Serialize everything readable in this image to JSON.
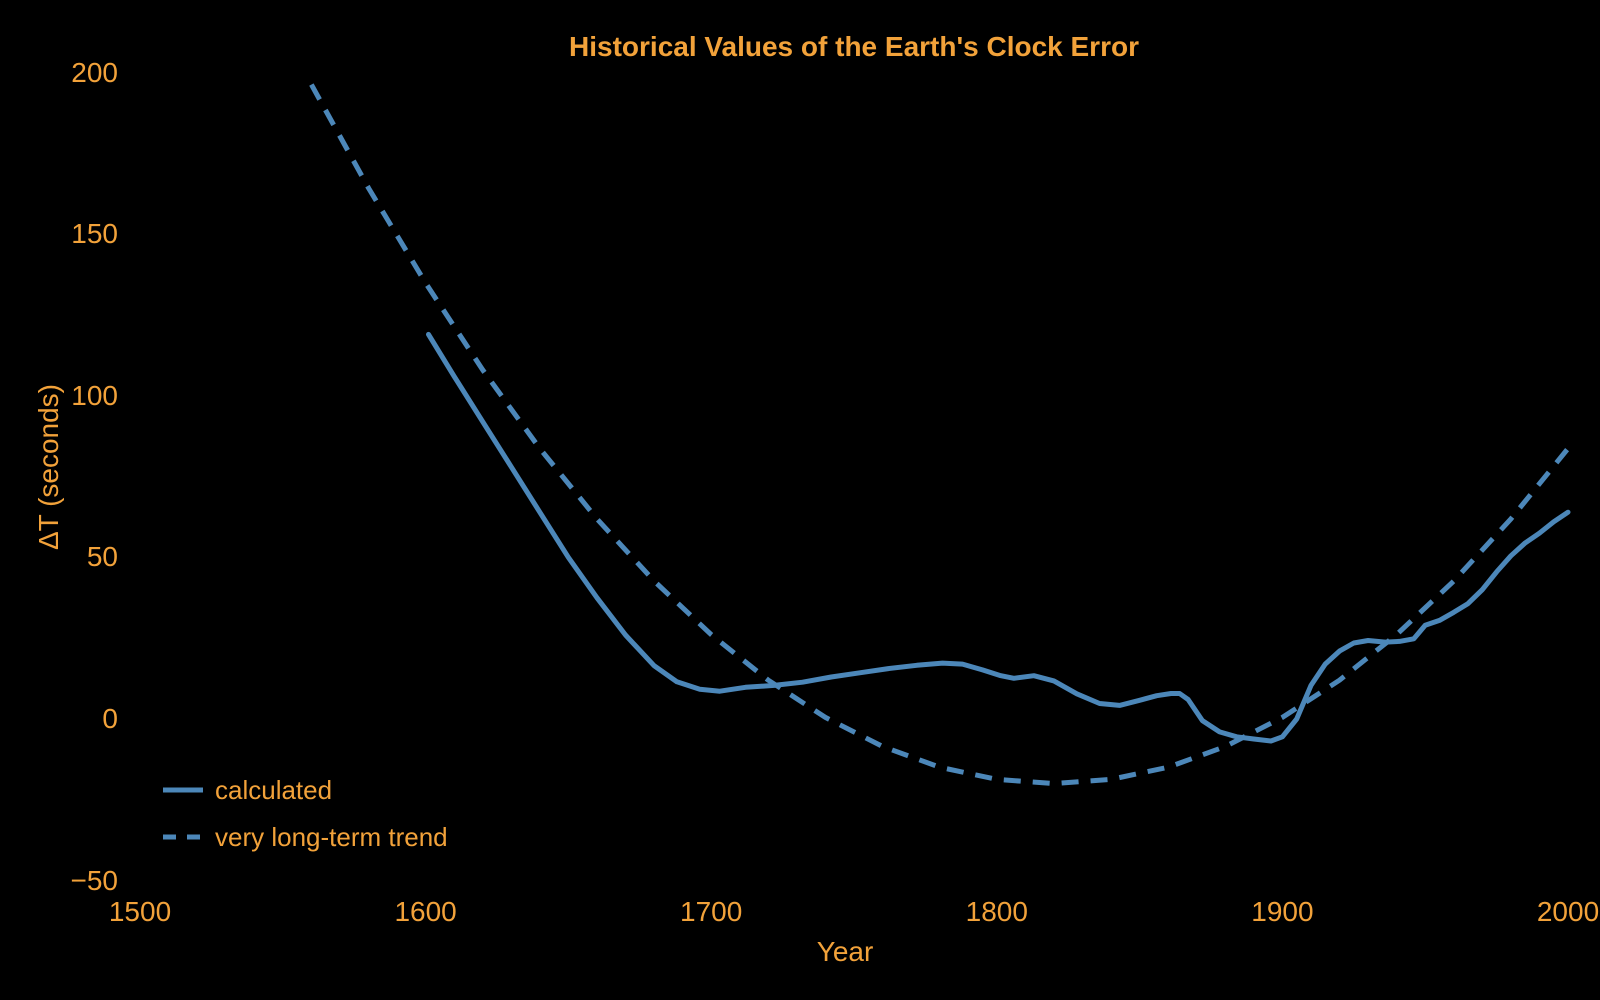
{
  "title": "Historical Values of the Earth's Clock Error",
  "colors": {
    "background": "#000000",
    "text": "#F2A23A",
    "line": "#4C87B9"
  },
  "legend": {
    "items": [
      {
        "label": "calculated",
        "style": "solid"
      },
      {
        "label": "very long-term trend",
        "style": "dashed"
      }
    ]
  },
  "chart_data": {
    "type": "line",
    "title": "Historical Values of the Earth's Clock Error",
    "xlabel": "Year",
    "ylabel": "ΔT (seconds)",
    "xlim": [
      1500,
      2000
    ],
    "ylim": [
      -50,
      200
    ],
    "grid": false,
    "legend_position": "lower left",
    "x_ticks": [
      {
        "value": 1500,
        "label": "1500"
      },
      {
        "value": 1600,
        "label": "1600"
      },
      {
        "value": 1700,
        "label": "1700"
      },
      {
        "value": 1800,
        "label": "1800"
      },
      {
        "value": 1900,
        "label": "1900"
      },
      {
        "value": 2000,
        "label": "2000"
      }
    ],
    "y_ticks": [
      {
        "value": -50,
        "label": "−50"
      },
      {
        "value": 0,
        "label": "0"
      },
      {
        "value": 50,
        "label": "50"
      },
      {
        "value": 100,
        "label": "100"
      },
      {
        "value": 150,
        "label": "150"
      },
      {
        "value": 200,
        "label": "200"
      }
    ],
    "series": [
      {
        "name": "calculated",
        "style": "solid",
        "points": [
          [
            1601,
            119
          ],
          [
            1610,
            106
          ],
          [
            1620,
            92
          ],
          [
            1630,
            78
          ],
          [
            1640,
            64
          ],
          [
            1650,
            50
          ],
          [
            1660,
            37.5
          ],
          [
            1670,
            26
          ],
          [
            1680,
            16.5
          ],
          [
            1688,
            11.5
          ],
          [
            1696,
            9.2
          ],
          [
            1703,
            8.6
          ],
          [
            1712,
            9.8
          ],
          [
            1722,
            10.4
          ],
          [
            1732,
            11.4
          ],
          [
            1742,
            13
          ],
          [
            1752,
            14.3
          ],
          [
            1762,
            15.6
          ],
          [
            1772,
            16.6
          ],
          [
            1781,
            17.3
          ],
          [
            1788,
            17
          ],
          [
            1795,
            15.2
          ],
          [
            1801,
            13.5
          ],
          [
            1806,
            12.6
          ],
          [
            1813,
            13.4
          ],
          [
            1820,
            11.8
          ],
          [
            1828,
            7.8
          ],
          [
            1836,
            4.8
          ],
          [
            1843,
            4.2
          ],
          [
            1850,
            5.8
          ],
          [
            1856,
            7.2
          ],
          [
            1861,
            7.9
          ],
          [
            1864,
            7.9
          ],
          [
            1867,
            6
          ],
          [
            1872,
            -0.5
          ],
          [
            1878,
            -4
          ],
          [
            1884,
            -5.5
          ],
          [
            1890,
            -6.2
          ],
          [
            1896,
            -6.8
          ],
          [
            1900,
            -5.5
          ],
          [
            1905,
            0
          ],
          [
            1910,
            10.4
          ],
          [
            1915,
            17
          ],
          [
            1920,
            21
          ],
          [
            1925,
            23.5
          ],
          [
            1930,
            24.3
          ],
          [
            1936,
            23.8
          ],
          [
            1941,
            24
          ],
          [
            1946,
            24.8
          ],
          [
            1950,
            29
          ],
          [
            1955,
            30.5
          ],
          [
            1960,
            33
          ],
          [
            1965,
            35.7
          ],
          [
            1970,
            40
          ],
          [
            1975,
            45.5
          ],
          [
            1980,
            50.5
          ],
          [
            1985,
            54.5
          ],
          [
            1990,
            57.5
          ],
          [
            1995,
            61
          ],
          [
            2000,
            64
          ]
        ]
      },
      {
        "name": "very long-term trend",
        "style": "dashed",
        "points": [
          [
            1560,
            196.3
          ],
          [
            1580,
            164.3
          ],
          [
            1600,
            134.9
          ],
          [
            1620,
            108.0
          ],
          [
            1640,
            83.7
          ],
          [
            1660,
            61.9
          ],
          [
            1680,
            42.7
          ],
          [
            1700,
            26.1
          ],
          [
            1720,
            12.0
          ],
          [
            1740,
            0.5
          ],
          [
            1760,
            -8.5
          ],
          [
            1780,
            -14.9
          ],
          [
            1800,
            -18.7
          ],
          [
            1820,
            -20.0
          ],
          [
            1840,
            -18.7
          ],
          [
            1860,
            -14.9
          ],
          [
            1880,
            -8.5
          ],
          [
            1900,
            0.5
          ],
          [
            1920,
            12.0
          ],
          [
            1940,
            26.1
          ],
          [
            1960,
            42.7
          ],
          [
            1980,
            61.9
          ],
          [
            2000,
            83.7
          ]
        ]
      }
    ]
  }
}
